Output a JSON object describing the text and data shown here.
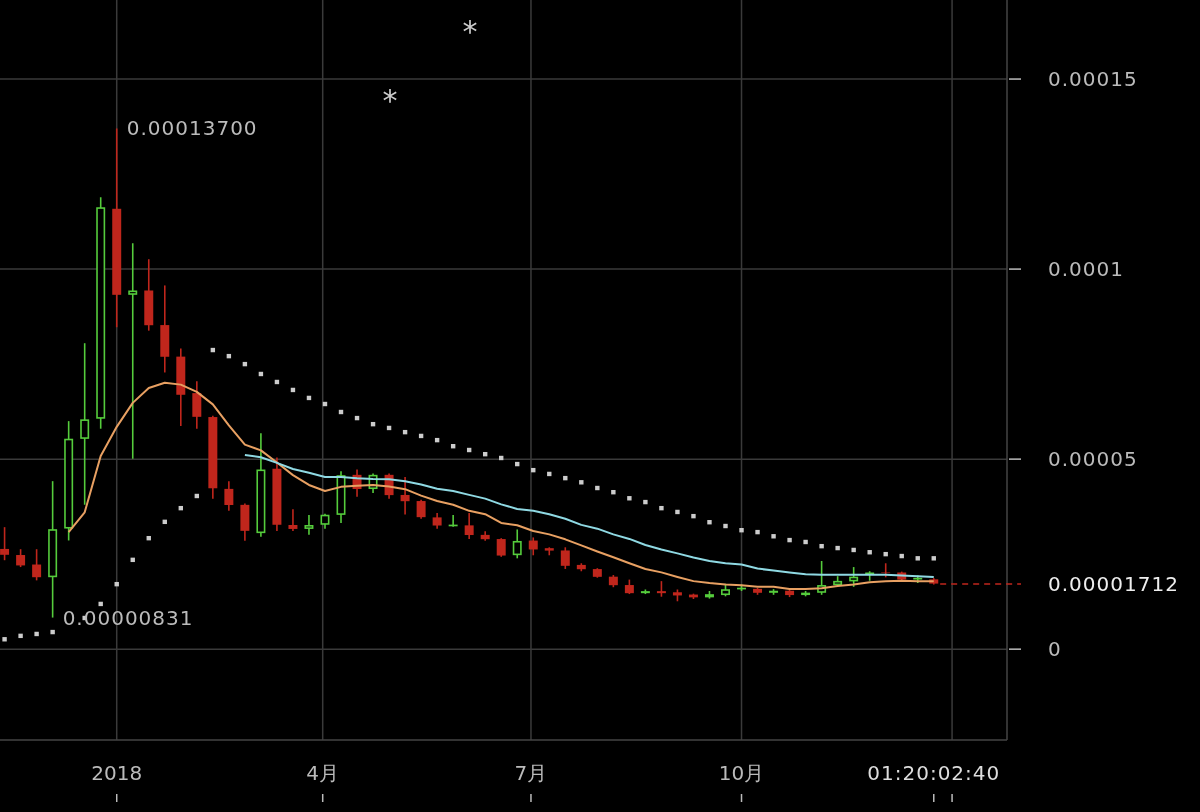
{
  "chart_data": {
    "type": "candlestick",
    "x": [
      "2017-11-13",
      "2017-11-20",
      "2017-11-27",
      "2017-12-04",
      "2017-12-11",
      "2017-12-18",
      "2017-12-25",
      "2018-01-01",
      "2018-01-08",
      "2018-01-15",
      "2018-01-22",
      "2018-01-29",
      "2018-02-05",
      "2018-02-12",
      "2018-02-19",
      "2018-02-26",
      "2018-03-05",
      "2018-03-12",
      "2018-03-19",
      "2018-03-26",
      "2018-04-02",
      "2018-04-09",
      "2018-04-16",
      "2018-04-23",
      "2018-04-30",
      "2018-05-07",
      "2018-05-14",
      "2018-05-21",
      "2018-05-28",
      "2018-06-04",
      "2018-06-11",
      "2018-06-18",
      "2018-06-25",
      "2018-07-02",
      "2018-07-09",
      "2018-07-16",
      "2018-07-23",
      "2018-07-30",
      "2018-08-06",
      "2018-08-13",
      "2018-08-20",
      "2018-08-27",
      "2018-09-03",
      "2018-09-10",
      "2018-09-17",
      "2018-09-24",
      "2018-10-01",
      "2018-10-08",
      "2018-10-15",
      "2018-10-22",
      "2018-10-29",
      "2018-11-05",
      "2018-11-12",
      "2018-11-19",
      "2018-11-26",
      "2018-12-03",
      "2018-12-10",
      "2018-12-17",
      "2018-12-24"
    ],
    "ohlc": [
      [
        2.65e-05,
        3.21e-05,
        2.34e-05,
        2.47e-05
      ],
      [
        2.49e-05,
        2.63e-05,
        2.16e-05,
        2.19e-05
      ],
      [
        2.24e-05,
        2.63e-05,
        1.81e-05,
        1.88e-05
      ],
      [
        1.88e-05,
        4.42e-05,
        8.31e-06,
        3.17e-05
      ],
      [
        3.16e-05,
        6e-05,
        2.86e-05,
        5.55e-05
      ],
      [
        5.52e-05,
        8.05e-05,
        3.8e-05,
        6.06e-05
      ],
      [
        6.05e-05,
        0.0001189,
        5.8e-05,
        0.0001164
      ],
      [
        0.000116,
        0.000137,
        8.47e-05,
        9.31e-05
      ],
      [
        9.31e-05,
        0.0001068,
        5.01e-05,
        9.45e-05
      ],
      [
        9.45e-05,
        0.0001026,
        8.38e-05,
        8.51e-05
      ],
      [
        8.54e-05,
        9.57e-05,
        7.28e-05,
        7.68e-05
      ],
      [
        7.71e-05,
        7.91e-05,
        5.87e-05,
        6.68e-05
      ],
      [
        6.75e-05,
        7.05e-05,
        5.8e-05,
        6.1e-05
      ],
      [
        6.12e-05,
        6.14e-05,
        3.96e-05,
        4.22e-05
      ],
      [
        4.23e-05,
        4.42e-05,
        3.64e-05,
        3.78e-05
      ],
      [
        3.81e-05,
        3.83e-05,
        2.85e-05,
        3.1e-05
      ],
      [
        3.04e-05,
        5.68e-05,
        2.96e-05,
        4.74e-05
      ],
      [
        4.76e-05,
        5.04e-05,
        3.11e-05,
        3.26e-05
      ],
      [
        3.28e-05,
        3.68e-05,
        3.11e-05,
        3.15e-05
      ],
      [
        3.15e-05,
        3.53e-05,
        3.01e-05,
        3.28e-05
      ],
      [
        3.26e-05,
        3.56e-05,
        3.17e-05,
        3.55e-05
      ],
      [
        3.52e-05,
        4.68e-05,
        3.32e-05,
        4.59e-05
      ],
      [
        4.6e-05,
        4.73e-05,
        4.01e-05,
        4.2e-05
      ],
      [
        4.2e-05,
        4.62e-05,
        4.11e-05,
        4.6e-05
      ],
      [
        4.6e-05,
        4.62e-05,
        3.96e-05,
        4.04e-05
      ],
      [
        4.07e-05,
        4.53e-05,
        3.54e-05,
        3.88e-05
      ],
      [
        3.91e-05,
        3.93e-05,
        3.43e-05,
        3.46e-05
      ],
      [
        3.48e-05,
        3.58e-05,
        3.17e-05,
        3.24e-05
      ],
      [
        3.24e-05,
        3.53e-05,
        3.22e-05,
        3.29e-05
      ],
      [
        3.27e-05,
        3.58e-05,
        2.9e-05,
        2.99e-05
      ],
      [
        3.02e-05,
        3.1e-05,
        2.85e-05,
        2.88e-05
      ],
      [
        2.91e-05,
        2.92e-05,
        2.43e-05,
        2.45e-05
      ],
      [
        2.46e-05,
        3.15e-05,
        2.39e-05,
        2.86e-05
      ],
      [
        2.87e-05,
        2.94e-05,
        2.47e-05,
        2.61e-05
      ],
      [
        2.67e-05,
        2.68e-05,
        2.47e-05,
        2.58e-05
      ],
      [
        2.61e-05,
        2.68e-05,
        2.11e-05,
        2.18e-05
      ],
      [
        2.23e-05,
        2.26e-05,
        2.05e-05,
        2.09e-05
      ],
      [
        2.12e-05,
        2.13e-05,
        1.88e-05,
        1.89e-05
      ],
      [
        1.92e-05,
        1.95e-05,
        1.63e-05,
        1.67e-05
      ],
      [
        1.7e-05,
        1.83e-05,
        1.45e-05,
        1.46e-05
      ],
      [
        1.46e-05,
        1.57e-05,
        1.45e-05,
        1.54e-05
      ],
      [
        1.54e-05,
        1.79e-05,
        1.38e-05,
        1.46e-05
      ],
      [
        1.51e-05,
        1.57e-05,
        1.26e-05,
        1.4e-05
      ],
      [
        1.45e-05,
        1.46e-05,
        1.32e-05,
        1.35e-05
      ],
      [
        1.35e-05,
        1.53e-05,
        1.33e-05,
        1.46e-05
      ],
      [
        1.41e-05,
        1.72e-05,
        1.39e-05,
        1.59e-05
      ],
      [
        1.57e-05,
        1.7e-05,
        1.53e-05,
        1.63e-05
      ],
      [
        1.6e-05,
        1.61e-05,
        1.43e-05,
        1.47e-05
      ],
      [
        1.47e-05,
        1.58e-05,
        1.43e-05,
        1.55e-05
      ],
      [
        1.55e-05,
        1.57e-05,
        1.37e-05,
        1.41e-05
      ],
      [
        1.41e-05,
        1.53e-05,
        1.39e-05,
        1.5e-05
      ],
      [
        1.47e-05,
        2.32e-05,
        1.43e-05,
        1.7e-05
      ],
      [
        1.67e-05,
        1.92e-05,
        1.65e-05,
        1.81e-05
      ],
      [
        1.77e-05,
        2.16e-05,
        1.64e-05,
        1.92e-05
      ],
      [
        1.97e-05,
        2.05e-05,
        1.8e-05,
        2.03e-05
      ],
      [
        2.03e-05,
        2.26e-05,
        1.89e-05,
        1.99e-05
      ],
      [
        2.03e-05,
        2.04e-05,
        1.81e-05,
        1.82e-05
      ],
      [
        1.82e-05,
        1.94e-05,
        1.74e-05,
        1.89e-05
      ],
      [
        1.85e-05,
        1.87e-05,
        1.7e-05,
        1.712e-05
      ]
    ],
    "colors": [
      "#c0261c",
      "#c0261c",
      "#c0261c",
      "#55cc3c",
      "#55cc3c",
      "#55cc3c",
      "#55cc3c",
      "#c0261c",
      "#55cc3c",
      "#c0261c",
      "#c0261c",
      "#c0261c",
      "#c0261c",
      "#c0261c",
      "#c0261c",
      "#c0261c",
      "#55cc3c",
      "#c0261c",
      "#c0261c",
      "#55cc3c",
      "#55cc3c",
      "#55cc3c",
      "#c0261c",
      "#55cc3c",
      "#c0261c",
      "#c0261c",
      "#c0261c",
      "#c0261c",
      "#55cc3c",
      "#c0261c",
      "#c0261c",
      "#c0261c",
      "#55cc3c",
      "#c0261c",
      "#c0261c",
      "#c0261c",
      "#c0261c",
      "#c0261c",
      "#c0261c",
      "#c0261c",
      "#55cc3c",
      "#c0261c",
      "#c0261c",
      "#c0261c",
      "#55cc3c",
      "#55cc3c",
      "#55cc3c",
      "#c0261c",
      "#55cc3c",
      "#c0261c",
      "#55cc3c",
      "#55cc3c",
      "#55cc3c",
      "#55cc3c",
      "#55cc3c",
      "#c0261c",
      "#c0261c",
      "#55cc3c",
      "#c0261c"
    ],
    "series": [
      {
        "type": "line",
        "color": "#e8a062",
        "values": [
          null,
          null,
          null,
          null,
          3.08e-05,
          3.6e-05,
          5.08e-05,
          5.85e-05,
          6.48e-05,
          6.87e-05,
          7.01e-05,
          6.96e-05,
          6.77e-05,
          6.44e-05,
          5.89e-05,
          5.38e-05,
          5.23e-05,
          4.91e-05,
          4.58e-05,
          4.32e-05,
          4.16e-05,
          4.27e-05,
          4.3e-05,
          4.32e-05,
          4.28e-05,
          4.21e-05,
          4.04e-05,
          3.9e-05,
          3.8e-05,
          3.64e-05,
          3.55e-05,
          3.32e-05,
          3.26e-05,
          3.11e-05,
          3.02e-05,
          2.89e-05,
          2.73e-05,
          2.57e-05,
          2.42e-05,
          2.26e-05,
          2.11e-05,
          2.02e-05,
          1.9e-05,
          1.79e-05,
          1.74e-05,
          1.7e-05,
          1.68e-05,
          1.64e-05,
          1.64e-05,
          1.58e-05,
          1.58e-05,
          1.6e-05,
          1.66e-05,
          1.7e-05,
          1.76e-05,
          1.79e-05,
          1.8e-05,
          1.79e-05,
          1.79e-05
        ]
      },
      {
        "type": "line",
        "color": "#8fd9e3",
        "values": [
          null,
          null,
          null,
          null,
          null,
          null,
          null,
          null,
          null,
          null,
          null,
          null,
          null,
          null,
          null,
          5.11e-05,
          5.05e-05,
          4.9e-05,
          4.74e-05,
          4.64e-05,
          4.53e-05,
          4.53e-05,
          4.5e-05,
          4.48e-05,
          4.47e-05,
          4.42e-05,
          4.33e-05,
          4.22e-05,
          4.16e-05,
          4.06e-05,
          3.96e-05,
          3.81e-05,
          3.69e-05,
          3.64e-05,
          3.55e-05,
          3.43e-05,
          3.27e-05,
          3.17e-05,
          3.02e-05,
          2.9e-05,
          2.74e-05,
          2.62e-05,
          2.52e-05,
          2.41e-05,
          2.32e-05,
          2.26e-05,
          2.23e-05,
          2.12e-05,
          2.07e-05,
          2.02e-05,
          1.97e-05,
          1.96e-05,
          1.96e-05,
          1.96e-05,
          1.96e-05,
          1.96e-05,
          1.94e-05,
          1.92e-05,
          1.9e-05
        ]
      },
      {
        "type": "scatter",
        "marker": "square",
        "color": "#cccccc",
        "values": [
          2.6e-06,
          3.5e-06,
          4e-06,
          4.5e-06,
          null,
          8.2e-06,
          1.19e-05,
          1.71e-05,
          2.35e-05,
          2.92e-05,
          3.35e-05,
          3.71e-05,
          4.03e-05,
          7.87e-05,
          7.71e-05,
          7.5e-05,
          7.24e-05,
          7.03e-05,
          6.82e-05,
          6.61e-05,
          6.45e-05,
          6.24e-05,
          6.08e-05,
          5.92e-05,
          5.82e-05,
          5.71e-05,
          5.61e-05,
          5.5e-05,
          5.34e-05,
          5.24e-05,
          5.13e-05,
          5.03e-05,
          4.87e-05,
          4.71e-05,
          4.61e-05,
          4.5e-05,
          4.39e-05,
          4.24e-05,
          4.13e-05,
          3.97e-05,
          3.87e-05,
          3.71e-05,
          3.61e-05,
          3.5e-05,
          3.34e-05,
          3.24e-05,
          3.13e-05,
          3.08e-05,
          2.97e-05,
          2.87e-05,
          2.82e-05,
          2.71e-05,
          2.66e-05,
          2.61e-05,
          2.55e-05,
          2.5e-05,
          2.45e-05,
          2.39e-05,
          2.39e-05
        ]
      }
    ],
    "xlim": [
      "2017-11-11",
      "2019-01-25"
    ],
    "ylim": [
      -2.39e-05,
      0.0001708
    ],
    "xticks": [
      {
        "value": "2018-01-01",
        "label": "2018"
      },
      {
        "value": "2018-04-01",
        "label": "4月"
      },
      {
        "value": "2018-07-01",
        "label": "7月"
      },
      {
        "value": "2018-10-01",
        "label": "10月"
      },
      {
        "value": "2019-01-01",
        "label": null
      }
    ],
    "yticks": [
      0,
      {
        "value": 5e-05,
        "label": "0.00005"
      },
      {
        "value": 0.0001,
        "label": "0.0001"
      },
      {
        "value": 0.00015,
        "label": "0.00015"
      }
    ],
    "grid": true,
    "ref_lines": [
      {
        "axis": "y",
        "value": 1.712e-05,
        "label": "0.00001712",
        "color": "#c0261c",
        "line_style": "dashed"
      }
    ],
    "annotations": [
      {
        "text": "0.00013700",
        "x": "2018-01-01",
        "y": 0.000137
      },
      {
        "text": "0.00000831",
        "x": "2017-12-04",
        "y": 8.31e-06
      },
      "*",
      "*",
      "01:20:02:40"
    ]
  }
}
